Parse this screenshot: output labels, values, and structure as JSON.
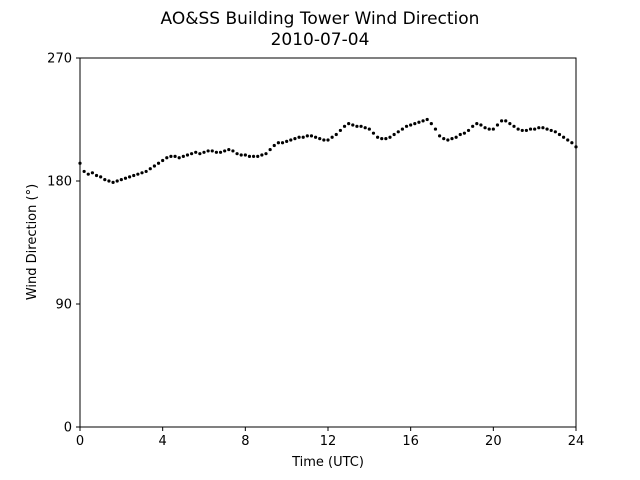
{
  "chart_data": {
    "type": "scatter",
    "title": "AO&SS Building Tower Wind Direction",
    "subtitle": "2010-07-04",
    "xlabel": "Time (UTC)",
    "ylabel": "Wind Direction (°)",
    "xlim": [
      0,
      24
    ],
    "ylim": [
      0,
      270
    ],
    "xticks": [
      0,
      4,
      8,
      12,
      16,
      20,
      24
    ],
    "yticks": [
      0,
      90,
      180,
      270
    ],
    "grid": false,
    "marker_color": "#000000",
    "x": [
      0.0,
      0.2,
      0.4,
      0.6,
      0.8,
      1.0,
      1.2,
      1.4,
      1.6,
      1.8,
      2.0,
      2.2,
      2.4,
      2.6,
      2.8,
      3.0,
      3.2,
      3.4,
      3.6,
      3.8,
      4.0,
      4.2,
      4.4,
      4.6,
      4.8,
      5.0,
      5.2,
      5.4,
      5.6,
      5.8,
      6.0,
      6.2,
      6.4,
      6.6,
      6.8,
      7.0,
      7.2,
      7.4,
      7.6,
      7.8,
      8.0,
      8.2,
      8.4,
      8.6,
      8.8,
      9.0,
      9.2,
      9.4,
      9.6,
      9.8,
      10.0,
      10.2,
      10.4,
      10.6,
      10.8,
      11.0,
      11.2,
      11.4,
      11.6,
      11.8,
      12.0,
      12.2,
      12.4,
      12.6,
      12.8,
      13.0,
      13.2,
      13.4,
      13.6,
      13.8,
      14.0,
      14.2,
      14.4,
      14.6,
      14.8,
      15.0,
      15.2,
      15.4,
      15.6,
      15.8,
      16.0,
      16.2,
      16.4,
      16.6,
      16.8,
      17.0,
      17.2,
      17.4,
      17.6,
      17.8,
      18.0,
      18.2,
      18.4,
      18.6,
      18.8,
      19.0,
      19.2,
      19.4,
      19.6,
      19.8,
      20.0,
      20.2,
      20.4,
      20.6,
      20.8,
      21.0,
      21.2,
      21.4,
      21.6,
      21.8,
      22.0,
      22.2,
      22.4,
      22.6,
      22.8,
      23.0,
      23.2,
      23.4,
      23.6,
      23.8,
      24.0
    ],
    "y": [
      193,
      187,
      185,
      186,
      184,
      183,
      181,
      180,
      179,
      180,
      181,
      182,
      183,
      184,
      185,
      186,
      187,
      189,
      191,
      193,
      195,
      197,
      198,
      198,
      197,
      198,
      199,
      200,
      201,
      200,
      201,
      202,
      202,
      201,
      201,
      202,
      203,
      202,
      200,
      199,
      199,
      198,
      198,
      198,
      199,
      200,
      203,
      206,
      208,
      208,
      209,
      210,
      211,
      212,
      212,
      213,
      213,
      212,
      211,
      210,
      210,
      212,
      214,
      217,
      220,
      222,
      221,
      220,
      220,
      219,
      218,
      215,
      212,
      211,
      211,
      212,
      214,
      216,
      218,
      220,
      221,
      222,
      223,
      224,
      225,
      222,
      218,
      213,
      211,
      210,
      211,
      212,
      214,
      215,
      217,
      220,
      222,
      221,
      219,
      218,
      218,
      221,
      224,
      224,
      222,
      220,
      218,
      217,
      217,
      218,
      218,
      219,
      219,
      218,
      217,
      216,
      214,
      212,
      210,
      208,
      205
    ]
  }
}
